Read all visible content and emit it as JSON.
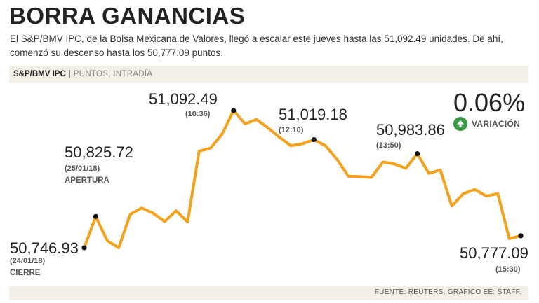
{
  "headline": "BORRA GANANCIAS",
  "intro": "El S&P/BMV IPC, de la Bolsa Mexicana de Valores, llegó a escalar este jueves hasta las 51,092.49 unidades. De ahí, comenzó su descenso hasta los 50,777.09 puntos.",
  "label_bar": {
    "index": "S&P/BMV IPC",
    "separator": "|",
    "subtitle": "PUNTOS, INTRADÍA"
  },
  "variation": {
    "value": "0.06%",
    "label": "VARIACIÓN",
    "icon": "arrow-up-icon",
    "icon_color": "#3a9a45"
  },
  "footer": "FUENTE: REUTERS. GRÁFICO EE: STAFF.",
  "colors": {
    "line": "#f5a11c",
    "panel": "#f3eee6"
  },
  "chart_data": {
    "type": "line",
    "title": "S&P/BMV IPC",
    "ylabel": "PUNTOS, INTRADÍA",
    "ylim": [
      50700,
      51130
    ],
    "grid": false,
    "series": [
      {
        "values": [
          50746.93,
          50825.72,
          50765,
          50747,
          50831,
          50847,
          50834,
          50813,
          50840,
          50812,
          50990,
          50998,
          51033,
          51092.49,
          51059,
          51070,
          51049,
          51025,
          51004,
          51009,
          51019.18,
          51004,
          50970,
          50927,
          50926,
          50924,
          50963,
          50958,
          50947,
          50983.86,
          50934,
          50943,
          50852,
          50883,
          50894,
          50877,
          50883,
          50770,
          50777.09
        ]
      }
    ],
    "annotations": [
      {
        "id": "cierre",
        "index": 0,
        "value": "50,746.93",
        "time": "(24/01/18)",
        "tag": "CIERRE"
      },
      {
        "id": "apertura",
        "index": 1,
        "value": "50,825.72",
        "time": "(25/01/18)",
        "tag": "APERTURA"
      },
      {
        "id": "max",
        "index": 13,
        "value": "51,092.49",
        "time": "(10:36)"
      },
      {
        "id": "mid",
        "index": 20,
        "value": "51,019.18",
        "time": "(12:10)"
      },
      {
        "id": "late",
        "index": 29,
        "value": "50,983.86",
        "time": "(13:50)"
      },
      {
        "id": "last",
        "index": 38,
        "value": "50,777.09",
        "time": "(15:30)"
      }
    ]
  }
}
